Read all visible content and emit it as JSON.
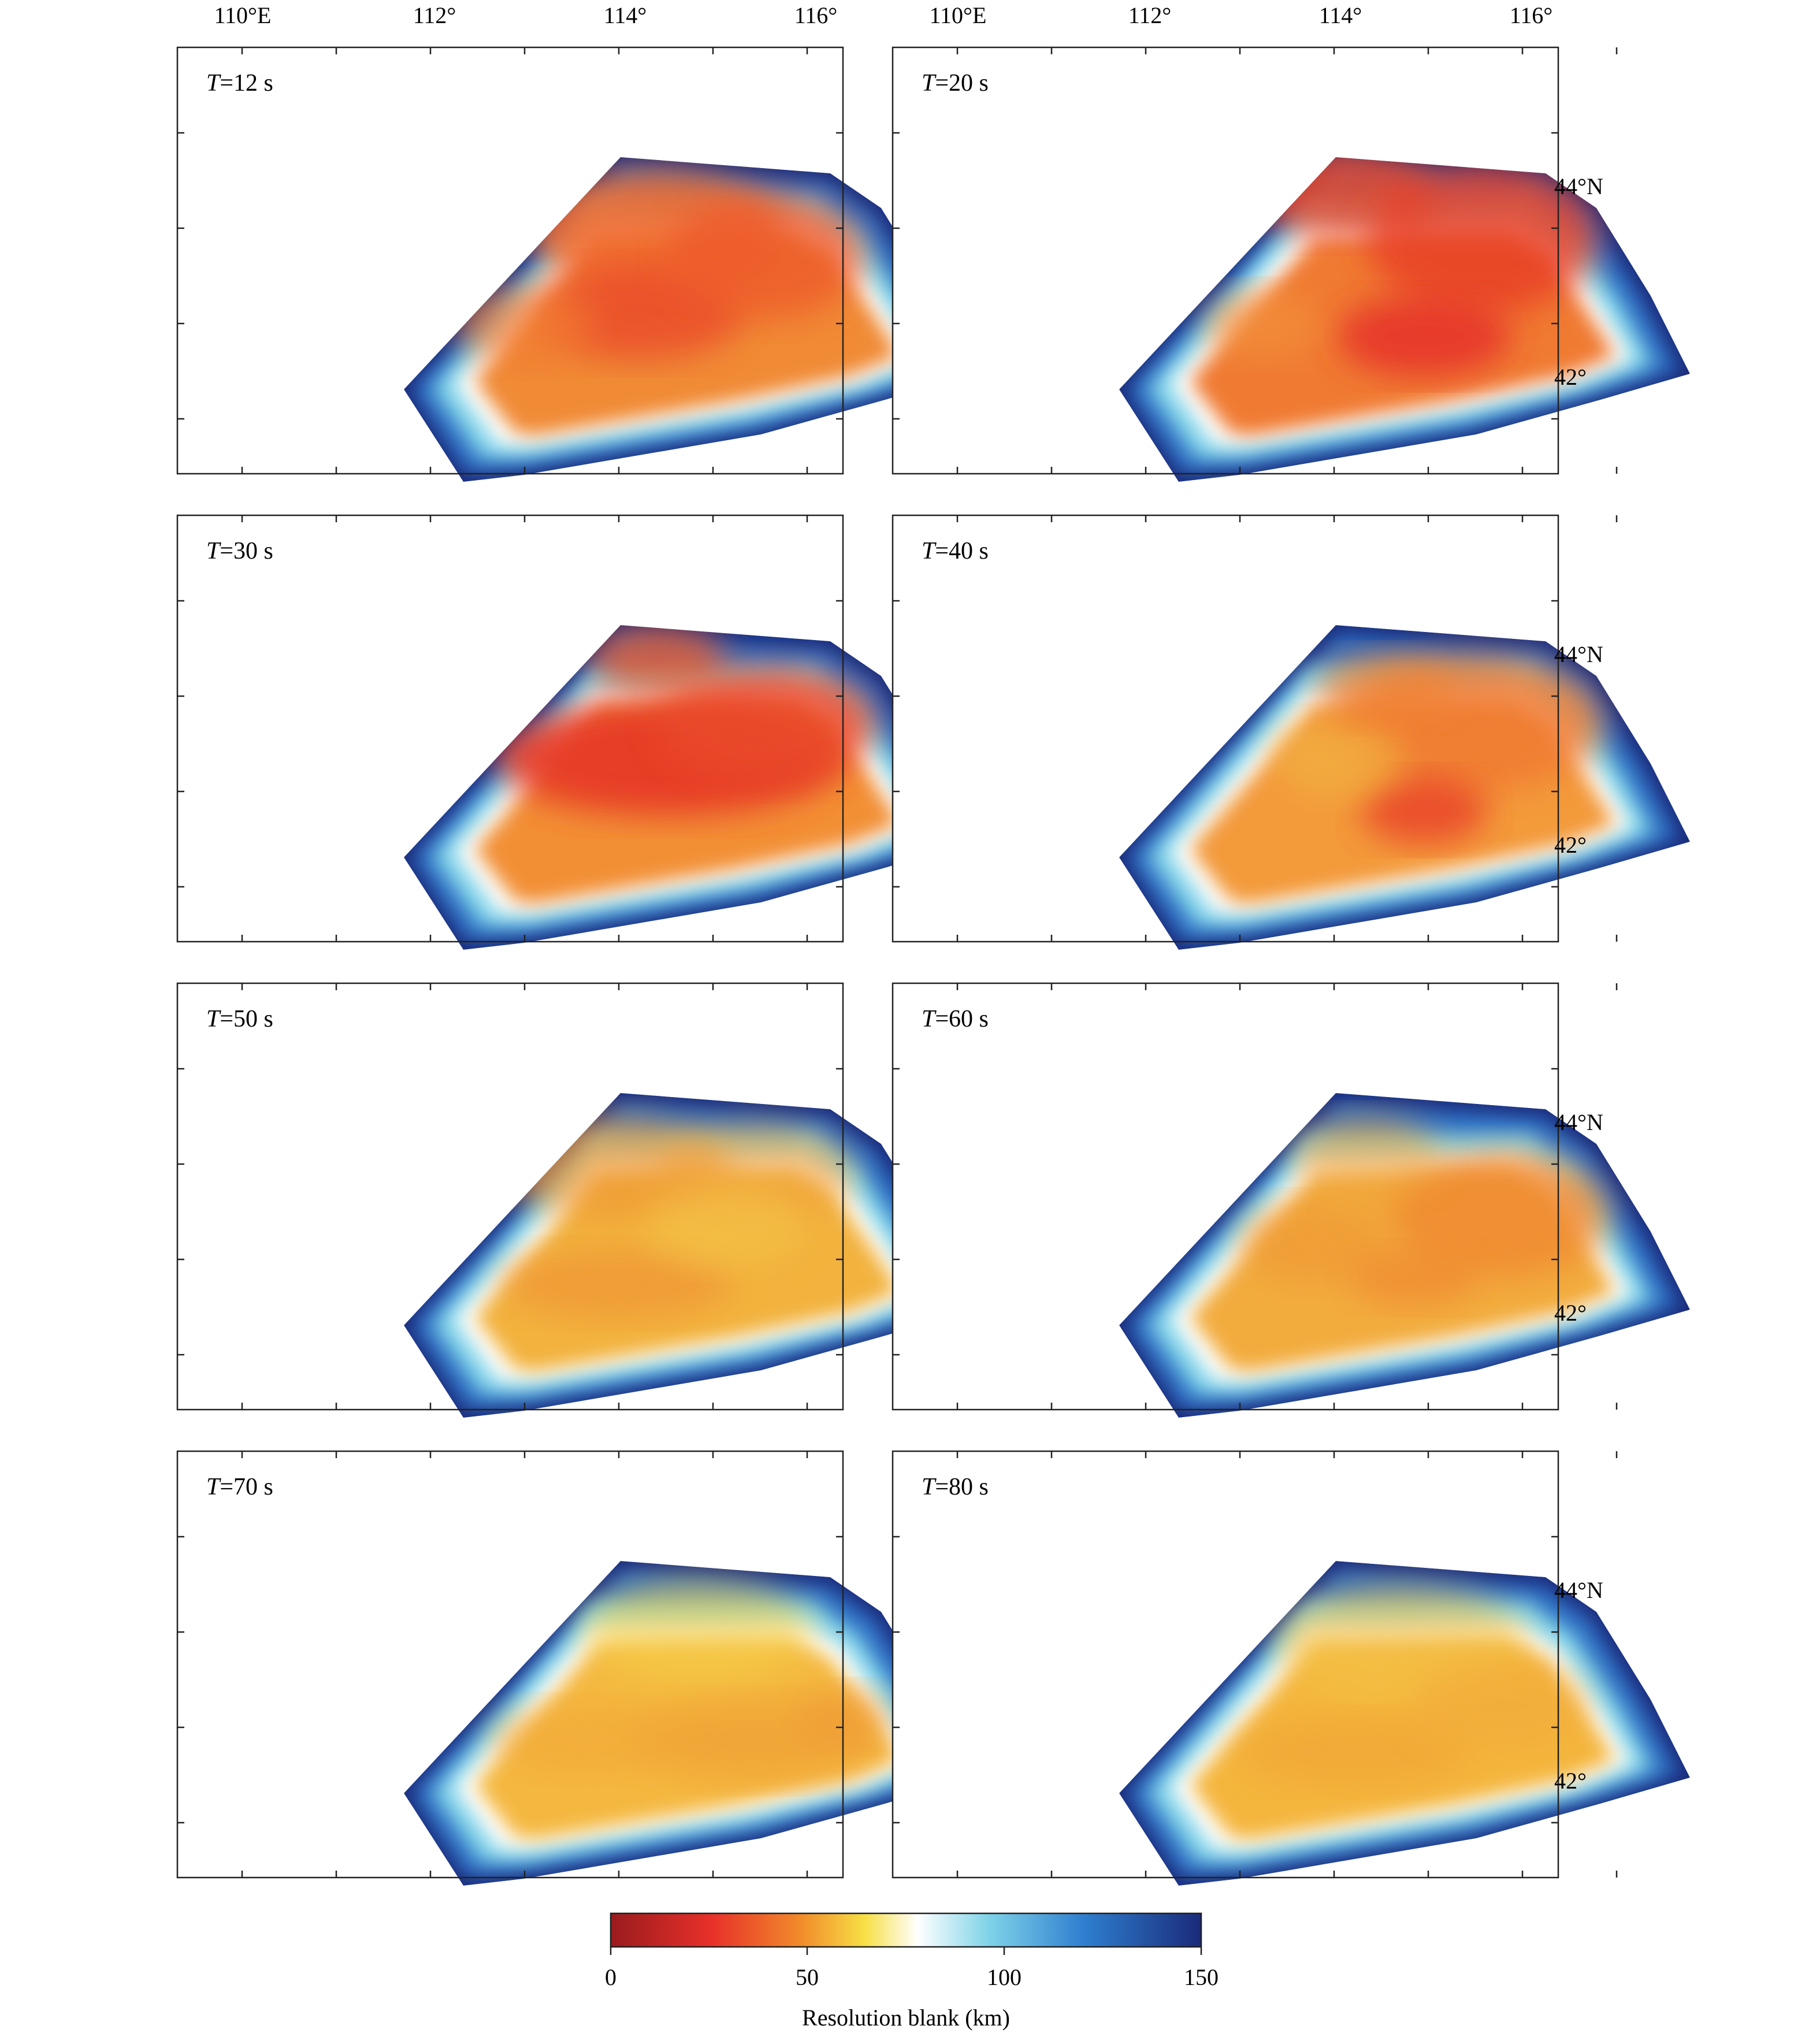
{
  "figure": {
    "top_longitude_labels": [
      "110°E",
      "112°",
      "114°",
      "116°"
    ],
    "right_latitude_labels": [
      "44°N",
      "42°"
    ],
    "panels": [
      {
        "period_symbol": "T",
        "period_value": "=12 s"
      },
      {
        "period_symbol": "T",
        "period_value": "=20 s"
      },
      {
        "period_symbol": "T",
        "period_value": "=30 s"
      },
      {
        "period_symbol": "T",
        "period_value": "=40 s"
      },
      {
        "period_symbol": "T",
        "period_value": "=50 s"
      },
      {
        "period_symbol": "T",
        "period_value": "=60 s"
      },
      {
        "period_symbol": "T",
        "period_value": "=70 s"
      },
      {
        "period_symbol": "T",
        "period_value": "=80 s"
      }
    ]
  },
  "colorbar": {
    "title": "Resolution blank (km)",
    "range": [
      0,
      150
    ],
    "ticks": [
      "0",
      "50",
      "100",
      "150"
    ],
    "stops": [
      "#9a1b1e",
      "#e8302a",
      "#f18a2a",
      "#f7df46",
      "#ffffff",
      "#7fd3e8",
      "#2f7fd0",
      "#1b2a7a"
    ]
  }
}
